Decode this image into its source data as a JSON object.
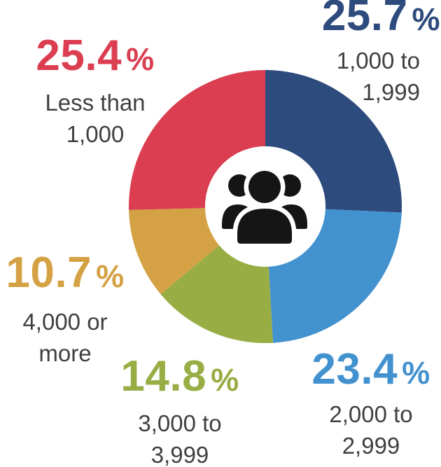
{
  "page": {
    "background": "#ffffff",
    "sublabel_color": "#3f3f41",
    "icon_color": "#151515"
  },
  "chart_data": {
    "type": "pie",
    "subtype": "donut",
    "categories": [
      "1,000 to 1,999",
      "2,000 to 2,999",
      "3,000 to 3,999",
      "4,000 or more",
      "Less than 1,000"
    ],
    "values": [
      25.7,
      23.4,
      14.8,
      10.7,
      25.4
    ],
    "unit": "%",
    "colors": [
      "#2E4B7D",
      "#4392D0",
      "#99AD45",
      "#D4A244",
      "#DB3E51"
    ],
    "start_angle_deg": 0,
    "direction": "clockwise",
    "legend_position": "labels-around-chart",
    "center_icon": "people-group-icon"
  },
  "labels": [
    {
      "id": "less-than-1000",
      "value": "25.4",
      "unit": "%",
      "lines": [
        "Less than",
        "1,000"
      ],
      "color": "#DB3E51"
    },
    {
      "id": "1000-to-1999",
      "value": "25.7",
      "unit": "%",
      "lines": [
        "1,000 to",
        "1,999"
      ],
      "color": "#2E4B7D"
    },
    {
      "id": "4000-or-more",
      "value": "10.7",
      "unit": "%",
      "lines": [
        "4,000 or",
        "more"
      ],
      "color": "#D4A244"
    },
    {
      "id": "3000-to-3999",
      "value": "14.8",
      "unit": "%",
      "lines": [
        "3,000 to",
        "3,999"
      ],
      "color": "#99AD45"
    },
    {
      "id": "2000-to-2999",
      "value": "23.4",
      "unit": "%",
      "lines": [
        "2,000 to",
        "2,999"
      ],
      "color": "#4392D0"
    }
  ]
}
